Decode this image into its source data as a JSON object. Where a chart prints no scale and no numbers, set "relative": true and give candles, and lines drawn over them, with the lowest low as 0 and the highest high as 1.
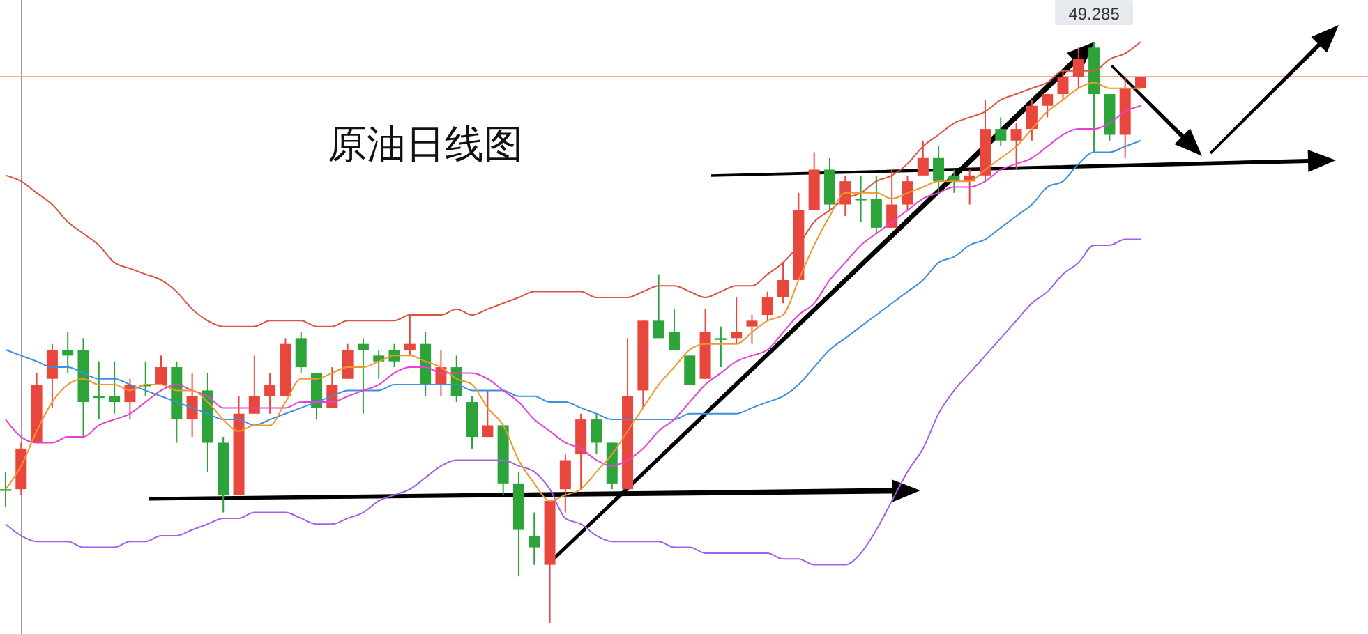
{
  "chart_data": {
    "type": "candlestick",
    "title": "原油日线图",
    "relative": true,
    "categories": [
      null,
      null,
      null,
      null,
      null,
      null,
      null,
      null,
      null,
      null,
      null,
      null,
      null,
      null,
      null,
      null,
      null,
      null,
      null,
      null,
      null,
      null,
      null,
      null,
      null,
      null,
      null,
      null,
      null,
      null,
      null,
      null,
      null,
      null,
      null,
      null,
      null,
      null,
      null,
      null,
      null,
      null,
      null,
      null,
      null,
      null,
      null,
      null,
      null,
      null,
      null,
      null,
      null,
      null,
      null,
      null,
      null,
      null,
      null,
      null,
      null,
      null,
      null,
      null,
      null,
      null,
      null,
      null,
      null,
      null,
      null,
      null,
      null,
      null
    ],
    "ohlc": [
      [
        0.23,
        0.26,
        0.2,
        0.23
      ],
      [
        0.23,
        0.31,
        0.22,
        0.3
      ],
      [
        0.31,
        0.43,
        0.31,
        0.41
      ],
      [
        0.42,
        0.48,
        0.37,
        0.47
      ],
      [
        0.47,
        0.5,
        0.43,
        0.46
      ],
      [
        0.47,
        0.49,
        0.32,
        0.38
      ],
      [
        0.39,
        0.45,
        0.35,
        0.39
      ],
      [
        0.39,
        0.45,
        0.36,
        0.38
      ],
      [
        0.38,
        0.42,
        0.35,
        0.41
      ],
      [
        0.41,
        0.45,
        0.39,
        0.41
      ],
      [
        0.41,
        0.46,
        0.41,
        0.44
      ],
      [
        0.44,
        0.45,
        0.31,
        0.35
      ],
      [
        0.35,
        0.43,
        0.32,
        0.39
      ],
      [
        0.4,
        0.43,
        0.26,
        0.31
      ],
      [
        0.31,
        0.32,
        0.19,
        0.22
      ],
      [
        0.22,
        0.39,
        0.22,
        0.36
      ],
      [
        0.36,
        0.46,
        0.36,
        0.39
      ],
      [
        0.39,
        0.43,
        0.36,
        0.41
      ],
      [
        0.39,
        0.49,
        0.39,
        0.48
      ],
      [
        0.49,
        0.5,
        0.43,
        0.44
      ],
      [
        0.43,
        0.43,
        0.35,
        0.37
      ],
      [
        0.37,
        0.44,
        0.37,
        0.41
      ],
      [
        0.42,
        0.48,
        0.42,
        0.47
      ],
      [
        0.48,
        0.49,
        0.36,
        0.47
      ],
      [
        0.46,
        0.47,
        0.42,
        0.45
      ],
      [
        0.47,
        0.48,
        0.44,
        0.45
      ],
      [
        0.47,
        0.53,
        0.46,
        0.48
      ],
      [
        0.48,
        0.5,
        0.39,
        0.41
      ],
      [
        0.41,
        0.47,
        0.39,
        0.44
      ],
      [
        0.44,
        0.46,
        0.38,
        0.39
      ],
      [
        0.38,
        0.39,
        0.3,
        0.32
      ],
      [
        0.32,
        0.4,
        0.32,
        0.34
      ],
      [
        0.34,
        0.34,
        0.22,
        0.24
      ],
      [
        0.24,
        0.26,
        0.08,
        0.16
      ],
      [
        0.15,
        0.19,
        0.1,
        0.13
      ],
      [
        0.1,
        0.21,
        0,
        0.21
      ],
      [
        0.23,
        0.29,
        0.19,
        0.28
      ],
      [
        0.29,
        0.36,
        0.23,
        0.35
      ],
      [
        0.35,
        0.36,
        0.29,
        0.31
      ],
      [
        0.31,
        0.31,
        0.23,
        0.24
      ],
      [
        0.23,
        0.49,
        0.23,
        0.39
      ],
      [
        0.4,
        0.52,
        0.37,
        0.52
      ],
      [
        0.52,
        0.6,
        0.49,
        0.49
      ],
      [
        0.5,
        0.54,
        0.47,
        0.47
      ],
      [
        0.46,
        0.46,
        0.41,
        0.41
      ],
      [
        0.42,
        0.54,
        0.42,
        0.5
      ],
      [
        0.49,
        0.51,
        0.44,
        0.49
      ],
      [
        0.49,
        0.56,
        0.48,
        0.5
      ],
      [
        0.51,
        0.53,
        0.48,
        0.52
      ],
      [
        0.53,
        0.57,
        0.52,
        0.56
      ],
      [
        0.56,
        0.62,
        0.55,
        0.59
      ],
      [
        0.59,
        0.74,
        0.59,
        0.71
      ],
      [
        0.71,
        0.81,
        0.71,
        0.78
      ],
      [
        0.78,
        0.8,
        0.71,
        0.72
      ],
      [
        0.72,
        0.77,
        0.7,
        0.76
      ],
      [
        0.73,
        0.77,
        0.69,
        0.73
      ],
      [
        0.73,
        0.77,
        0.67,
        0.68
      ],
      [
        0.68,
        0.78,
        0.68,
        0.72
      ],
      [
        0.72,
        0.77,
        0.71,
        0.76
      ],
      [
        0.77,
        0.83,
        0.77,
        0.8
      ],
      [
        0.8,
        0.82,
        0.74,
        0.76
      ],
      [
        0.77,
        0.78,
        0.74,
        0.76
      ],
      [
        0.76,
        0.78,
        0.72,
        0.77
      ],
      [
        0.77,
        0.9,
        0.76,
        0.85
      ],
      [
        0.85,
        0.87,
        0.82,
        0.83
      ],
      [
        0.83,
        0.86,
        0.78,
        0.85
      ],
      [
        0.85,
        0.9,
        0.83,
        0.89
      ],
      [
        0.89,
        0.91,
        0.87,
        0.91
      ],
      [
        0.91,
        0.95,
        0.9,
        0.94
      ],
      [
        0.94,
        0.99,
        0.92,
        0.97
      ],
      [
        0.99,
        1,
        0.81,
        0.91
      ],
      [
        0.91,
        0.91,
        0.83,
        0.84
      ],
      [
        0.84,
        0.94,
        0.8,
        0.92
      ],
      [
        0.92,
        0.94,
        0.92,
        0.94
      ]
    ],
    "colors": [
      "#2ca43a",
      "#e8473e",
      "#e8473e",
      "#e8473e",
      "#2ca43a",
      "#2ca43a",
      "#2ca43a",
      "#2ca43a",
      "#e8473e",
      "#2ca43a",
      "#e8473e",
      "#2ca43a",
      "#e8473e",
      "#2ca43a",
      "#2ca43a",
      "#e8473e",
      "#e8473e",
      "#e8473e",
      "#e8473e",
      "#2ca43a",
      "#2ca43a",
      "#e8473e",
      "#e8473e",
      "#2ca43a",
      "#2ca43a",
      "#2ca43a",
      "#e8473e",
      "#2ca43a",
      "#e8473e",
      "#2ca43a",
      "#2ca43a",
      "#e8473e",
      "#2ca43a",
      "#2ca43a",
      "#2ca43a",
      "#e8473e",
      "#e8473e",
      "#e8473e",
      "#2ca43a",
      "#2ca43a",
      "#e8473e",
      "#e8473e",
      "#2ca43a",
      "#2ca43a",
      "#2ca43a",
      "#e8473e",
      "#2ca43a",
      "#e8473e",
      "#e8473e",
      "#e8473e",
      "#e8473e",
      "#e8473e",
      "#e8473e",
      "#2ca43a",
      "#e8473e",
      "#2ca43a",
      "#2ca43a",
      "#e8473e",
      "#e8473e",
      "#e8473e",
      "#2ca43a",
      "#2ca43a",
      "#e8473e",
      "#e8473e",
      "#2ca43a",
      "#e8473e",
      "#e8473e",
      "#e8473e",
      "#e8473e",
      "#e8473e",
      "#2ca43a",
      "#2ca43a",
      "#e8473e",
      "#e8473e"
    ],
    "series": [
      {
        "type": "line",
        "color": "#d9553f",
        "values": [
          0.77,
          0.76,
          0.74,
          0.72,
          0.69,
          0.67,
          0.65,
          0.62,
          0.61,
          0.6,
          0.59,
          0.57,
          0.54,
          0.52,
          0.51,
          0.51,
          0.51,
          0.52,
          0.52,
          0.52,
          0.51,
          0.51,
          0.52,
          0.52,
          0.52,
          0.52,
          0.53,
          0.53,
          0.53,
          0.54,
          0.53,
          0.54,
          0.55,
          0.56,
          0.57,
          0.57,
          0.57,
          0.57,
          0.56,
          0.56,
          0.56,
          0.57,
          0.58,
          0.58,
          0.57,
          0.56,
          0.57,
          0.58,
          0.58,
          0.6,
          0.62,
          0.65,
          0.69,
          0.71,
          0.73,
          0.74,
          0.76,
          0.77,
          0.79,
          0.82,
          0.84,
          0.86,
          0.87,
          0.88,
          0.9,
          0.91,
          0.92,
          0.93,
          0.95,
          0.95,
          0.95,
          0.97,
          0.98,
          1
        ]
      },
      {
        "type": "line",
        "color": "#a55ee8",
        "values": [
          0.17,
          0.15,
          0.14,
          0.14,
          0.14,
          0.13,
          0.13,
          0.13,
          0.14,
          0.14,
          0.15,
          0.15,
          0.16,
          0.17,
          0.18,
          0.18,
          0.19,
          0.19,
          0.19,
          0.18,
          0.17,
          0.17,
          0.18,
          0.19,
          0.21,
          0.22,
          0.23,
          0.25,
          0.27,
          0.28,
          0.28,
          0.28,
          0.28,
          0.27,
          0.26,
          0.23,
          0.18,
          0.17,
          0.15,
          0.14,
          0.14,
          0.14,
          0.14,
          0.13,
          0.13,
          0.12,
          0.12,
          0.12,
          0.12,
          0.12,
          0.11,
          0.11,
          0.1,
          0.1,
          0.1,
          0.12,
          0.16,
          0.21,
          0.26,
          0.3,
          0.36,
          0.4,
          0.43,
          0.46,
          0.49,
          0.52,
          0.55,
          0.57,
          0.6,
          0.62,
          0.65,
          0.65,
          0.66,
          0.66
        ]
      },
      {
        "type": "line",
        "color": "#3d8fe0",
        "values": [
          0.47,
          0.46,
          0.45,
          0.44,
          0.44,
          0.43,
          0.42,
          0.42,
          0.41,
          0.4,
          0.39,
          0.38,
          0.37,
          0.36,
          0.35,
          0.35,
          0.34,
          0.35,
          0.36,
          0.37,
          0.38,
          0.39,
          0.4,
          0.4,
          0.4,
          0.41,
          0.41,
          0.41,
          0.41,
          0.41,
          0.4,
          0.4,
          0.4,
          0.39,
          0.39,
          0.38,
          0.38,
          0.37,
          0.36,
          0.35,
          0.35,
          0.35,
          0.35,
          0.35,
          0.36,
          0.36,
          0.36,
          0.36,
          0.37,
          0.38,
          0.39,
          0.41,
          0.44,
          0.47,
          0.49,
          0.51,
          0.53,
          0.55,
          0.57,
          0.59,
          0.62,
          0.63,
          0.65,
          0.66,
          0.68,
          0.7,
          0.72,
          0.75,
          0.76,
          0.79,
          0.81,
          0.81,
          0.82,
          0.83
        ]
      },
      {
        "type": "line",
        "color": "#e83fd6",
        "values": [
          0.35,
          0.32,
          0.31,
          0.31,
          0.32,
          0.32,
          0.34,
          0.35,
          0.36,
          0.38,
          0.4,
          0.41,
          0.4,
          0.39,
          0.37,
          0.37,
          0.37,
          0.37,
          0.37,
          0.38,
          0.38,
          0.38,
          0.39,
          0.4,
          0.41,
          0.43,
          0.44,
          0.44,
          0.43,
          0.43,
          0.43,
          0.42,
          0.4,
          0.38,
          0.35,
          0.33,
          0.31,
          0.3,
          0.28,
          0.27,
          0.28,
          0.3,
          0.33,
          0.35,
          0.38,
          0.41,
          0.43,
          0.45,
          0.46,
          0.47,
          0.5,
          0.53,
          0.55,
          0.59,
          0.62,
          0.65,
          0.67,
          0.69,
          0.71,
          0.73,
          0.74,
          0.75,
          0.75,
          0.76,
          0.78,
          0.79,
          0.8,
          0.82,
          0.84,
          0.85,
          0.85,
          0.86,
          0.88,
          0.89
        ]
      },
      {
        "type": "line",
        "color": "#f0962e",
        "values": [
          0.23,
          0.27,
          0.33,
          0.38,
          0.41,
          0.42,
          0.41,
          0.41,
          0.4,
          0.41,
          0.41,
          0.4,
          0.4,
          0.38,
          0.35,
          0.33,
          0.34,
          0.34,
          0.38,
          0.42,
          0.42,
          0.43,
          0.44,
          0.44,
          0.45,
          0.46,
          0.46,
          0.45,
          0.44,
          0.42,
          0.41,
          0.37,
          0.34,
          0.28,
          0.24,
          0.21,
          0.22,
          0.23,
          0.26,
          0.29,
          0.33,
          0.37,
          0.41,
          0.44,
          0.47,
          0.48,
          0.48,
          0.48,
          0.5,
          0.52,
          0.53,
          0.59,
          0.65,
          0.7,
          0.74,
          0.74,
          0.74,
          0.73,
          0.74,
          0.75,
          0.76,
          0.76,
          0.76,
          0.78,
          0.8,
          0.82,
          0.85,
          0.88,
          0.9,
          0.92,
          0.93,
          0.92,
          0.92,
          0.92
        ]
      }
    ],
    "ref_lines": [
      {
        "axis": "y",
        "value": 0.94,
        "color": "#f0a898"
      }
    ],
    "annotations": [
      {
        "text": "49.285",
        "y": 1
      }
    ]
  }
}
